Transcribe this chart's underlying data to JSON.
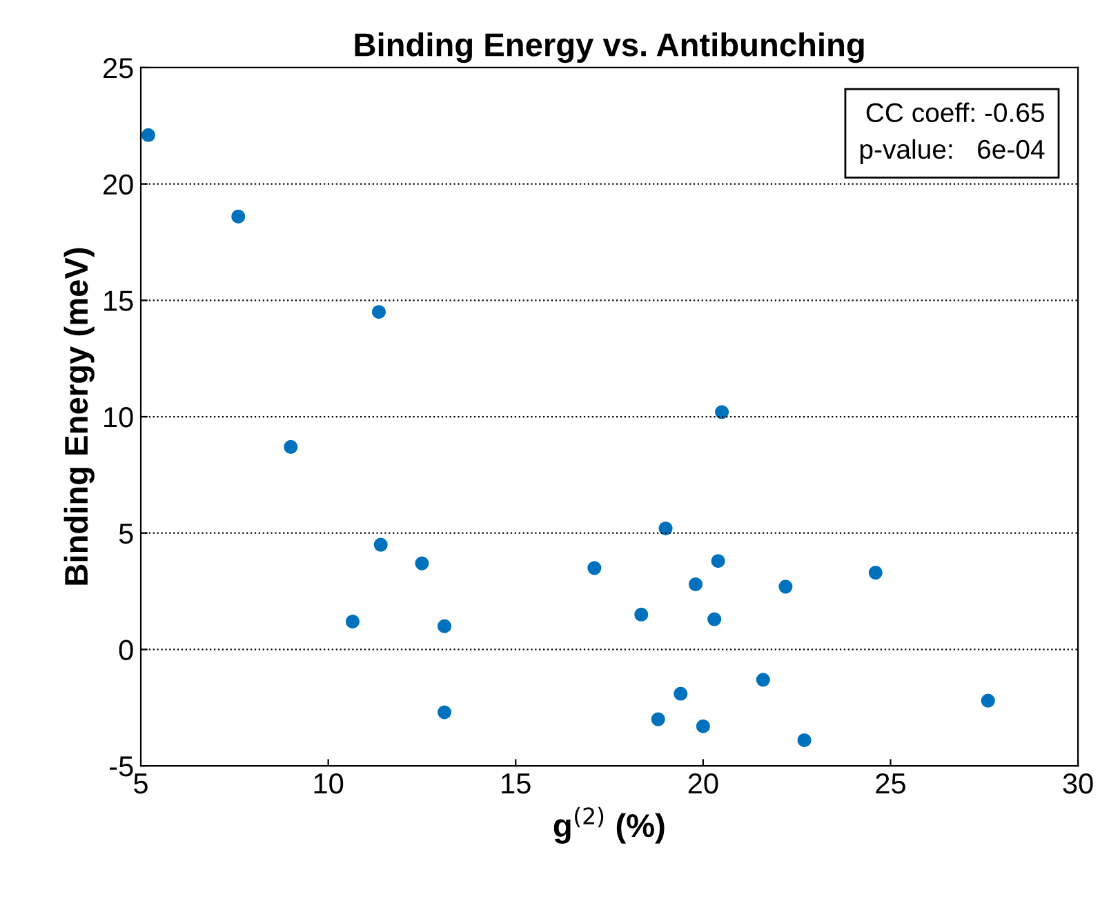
{
  "chart_data": {
    "type": "scatter",
    "title": "Binding Energy vs. Antibunching",
    "xlabel": "g$^{(2)}$ (%)",
    "ylabel": "Binding Energy (meV)",
    "x": [
      5.2,
      7.6,
      9.0,
      11.35,
      11.4,
      10.65,
      12.5,
      13.1,
      13.1,
      17.1,
      18.35,
      18.8,
      19.0,
      19.4,
      19.8,
      20.0,
      20.3,
      20.4,
      20.5,
      21.6,
      22.2,
      22.7,
      24.6,
      27.6
    ],
    "series": [
      {
        "color": "#0072bd",
        "values": [
          22.1,
          18.6,
          8.7,
          14.5,
          4.5,
          1.2,
          3.7,
          1.0,
          -2.7,
          3.5,
          1.5,
          -3.0,
          5.2,
          -1.9,
          2.8,
          -3.3,
          1.3,
          3.8,
          10.2,
          -1.3,
          2.7,
          -3.9,
          3.3,
          -2.2
        ]
      }
    ],
    "xlim": [
      5,
      30
    ],
    "xticks": [
      5,
      10,
      15,
      20,
      25,
      30
    ],
    "ylim": [
      -5,
      25
    ],
    "yticks": [
      -5,
      0,
      5,
      10,
      15,
      20,
      25
    ],
    "grid": "y",
    "marker": "circle",
    "annotations": [
      "CC coeff: -0.65\np-value:   6e-04"
    ]
  }
}
